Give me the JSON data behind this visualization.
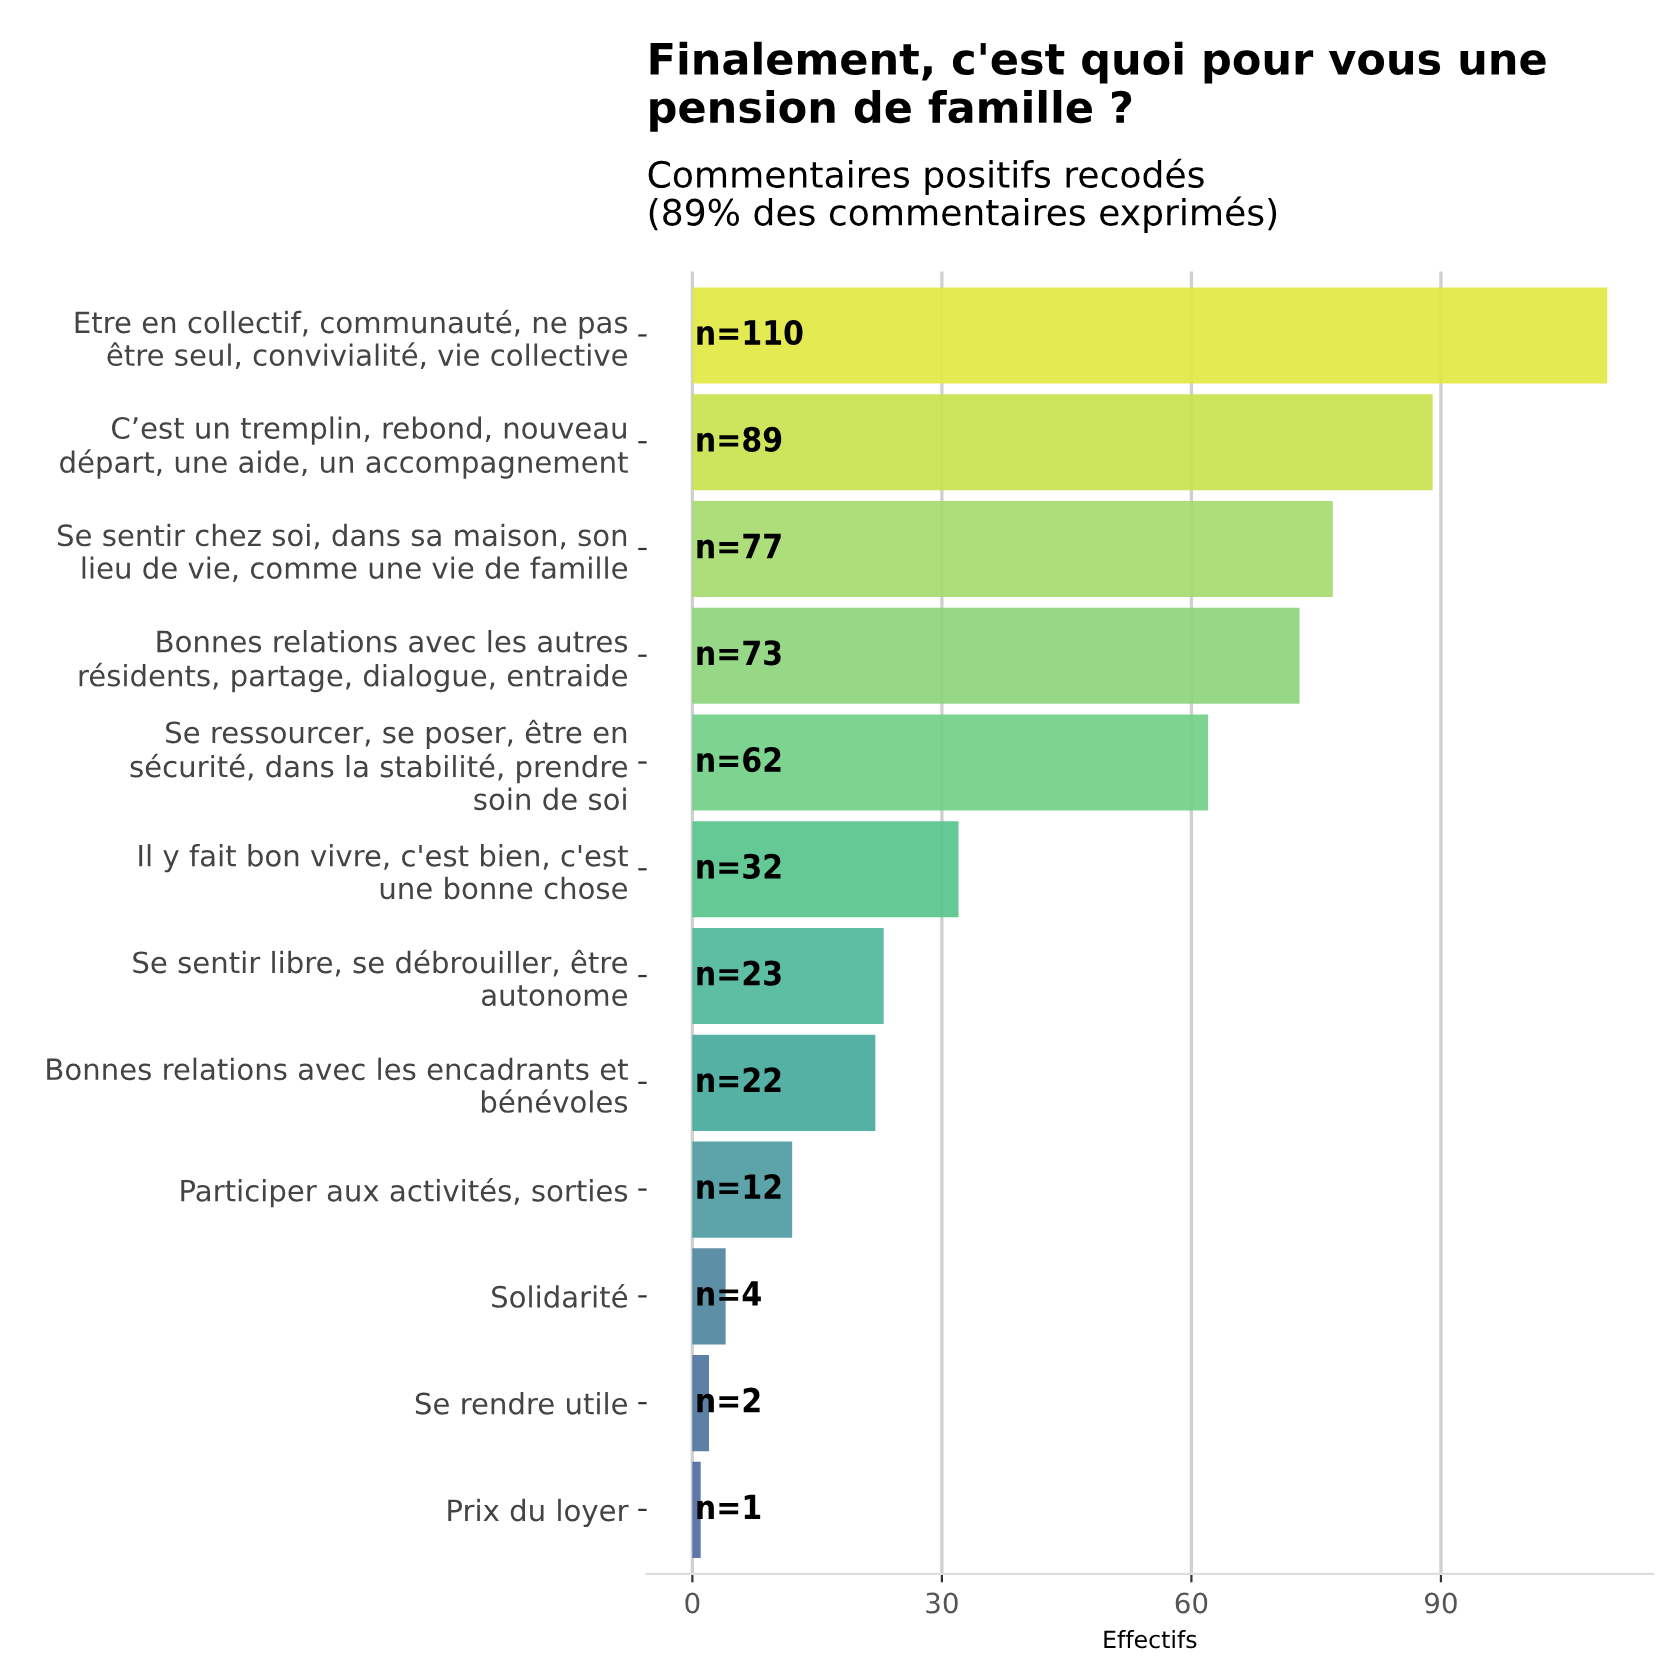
{
  "chart_data": {
    "type": "bar",
    "orientation": "horizontal",
    "title": "Finalement, c'est quoi pour vous une pension de famille ?",
    "subtitle": "Commentaires positifs recodés\n(89% des commentaires exprimés)",
    "xlabel": "Effectifs",
    "categories": [
      "Etre en collectif, communauté, ne pas\nêtre seul, convivialité, vie collective",
      "C’est un tremplin, rebond, nouveau\ndépart, une aide, un accompagnement",
      "Se sentir chez soi, dans sa maison, son\nlieu de vie, comme une vie de famille",
      "Bonnes relations avec les autres\nrésidents, partage, dialogue, entraide",
      "Se ressourcer, se poser, être en\nsécurité, dans la stabilité, prendre\nsoin de soi",
      "Il y fait bon vivre, c'est bien, c'est\nune bonne chose",
      "Se sentir libre, se débrouiller, être\nautonome",
      "Bonnes relations avec les encadrants et\nbénévoles",
      "Participer aux activités, sorties",
      "Solidarité",
      "Se rendre utile",
      "Prix du loyer"
    ],
    "values": [
      110,
      89,
      77,
      73,
      62,
      32,
      23,
      22,
      12,
      4,
      2,
      1
    ],
    "value_labels": [
      "n=110",
      "n=89",
      "n=77",
      "n=73",
      "n=62",
      "n=32",
      "n=23",
      "n=22",
      "n=12",
      "n=4",
      "n=2",
      "n=1"
    ],
    "colors": [
      "#e1e83f",
      "#c6e24b",
      "#a5da6b",
      "#8bd479",
      "#6fcf84",
      "#54c389",
      "#4bb79a",
      "#43a999",
      "#4a9aa1",
      "#4b849d",
      "#4b729c",
      "#4e67a0"
    ],
    "xlim": [
      -5.5,
      115.5
    ],
    "xticks": [
      0,
      30,
      60,
      90
    ],
    "grid": "x",
    "legend": false
  }
}
